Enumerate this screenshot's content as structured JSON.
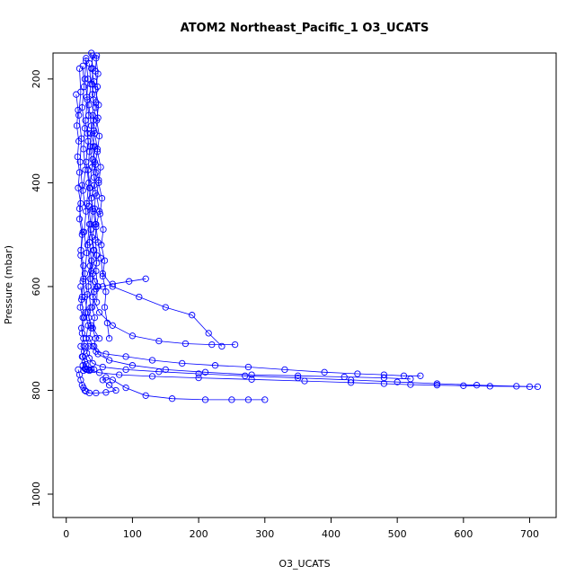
{
  "chart_data": {
    "type": "line",
    "title": "ATOM2 Northeast_Pacific_1 O3_UCATS",
    "xlabel": "O3_UCATS",
    "ylabel": "Pressure (mbar)",
    "xlim": [
      -20,
      740
    ],
    "ylim": [
      1045,
      150
    ],
    "y_reversed": true,
    "x_ticks": [
      0,
      100,
      200,
      300,
      400,
      500,
      600,
      700
    ],
    "y_ticks": [
      200,
      400,
      600,
      800,
      1000
    ],
    "grid": false,
    "legend": "none",
    "colors": {
      "series": "#0000ff",
      "axes": "#000000"
    },
    "marker": "open-circle",
    "series": [
      {
        "x": [
          40,
          38,
          42,
          39,
          44,
          41,
          37,
          43,
          40,
          45,
          42,
          38,
          41,
          44,
          39,
          42,
          46,
          40,
          43,
          48,
          45,
          55,
          70,
          95,
          120
        ],
        "y": [
          155,
          180,
          205,
          230,
          255,
          280,
          305,
          330,
          355,
          380,
          405,
          430,
          455,
          480,
          505,
          530,
          555,
          575,
          590,
          600,
          605,
          600,
          595,
          590,
          585
        ]
      },
      {
        "x": [
          46,
          44,
          47,
          45,
          48,
          43,
          47,
          44,
          49,
          46,
          50,
          45,
          48,
          52,
          55,
          70,
          110,
          150,
          190,
          215,
          235
        ],
        "y": [
          155,
          185,
          215,
          245,
          275,
          305,
          335,
          365,
          395,
          425,
          455,
          485,
          515,
          545,
          575,
          600,
          620,
          640,
          655,
          690,
          715
        ]
      },
      {
        "x": [
          30,
          28,
          32,
          29,
          33,
          30,
          34,
          31,
          35,
          32,
          36,
          33,
          37,
          34,
          38,
          35,
          40,
          45,
          60,
          90,
          130,
          175,
          225,
          275,
          330,
          390,
          440,
          480,
          510,
          535
        ],
        "y": [
          160,
          200,
          240,
          280,
          320,
          360,
          400,
          440,
          480,
          520,
          560,
          600,
          640,
          660,
          680,
          700,
          715,
          725,
          730,
          735,
          742,
          748,
          752,
          755,
          760,
          765,
          768,
          770,
          772,
          772
        ]
      },
      {
        "x": [
          35,
          37,
          34,
          38,
          36,
          39,
          35,
          40,
          37,
          41,
          38,
          42,
          39,
          43,
          40,
          44,
          42,
          48,
          65,
          100,
          150,
          210,
          280,
          350,
          420,
          480,
          520
        ],
        "y": [
          170,
          210,
          250,
          290,
          330,
          370,
          410,
          450,
          490,
          530,
          570,
          610,
          640,
          660,
          680,
          700,
          715,
          730,
          742,
          752,
          760,
          765,
          770,
          772,
          774,
          776,
          778
        ]
      },
      {
        "x": [
          25,
          27,
          24,
          28,
          26,
          29,
          25,
          30,
          27,
          31,
          28,
          32,
          29,
          33,
          30,
          34,
          31,
          35,
          40,
          55,
          90,
          140,
          200,
          270,
          350,
          430,
          500,
          560,
          620,
          680,
          712
        ],
        "y": [
          175,
          215,
          255,
          295,
          335,
          375,
          415,
          455,
          495,
          535,
          575,
          615,
          650,
          675,
          700,
          715,
          728,
          738,
          748,
          755,
          760,
          764,
          768,
          772,
          776,
          780,
          784,
          787,
          790,
          792,
          793
        ]
      },
      {
        "x": [
          20,
          22,
          19,
          23,
          21,
          24,
          20,
          25,
          22,
          26,
          23,
          27,
          24,
          28,
          25,
          30,
          35,
          50,
          80,
          130,
          200,
          280,
          360,
          430,
          480,
          520,
          560,
          600,
          640,
          700
        ],
        "y": [
          180,
          225,
          270,
          315,
          360,
          405,
          450,
          495,
          540,
          585,
          625,
          660,
          690,
          715,
          735,
          750,
          760,
          766,
          770,
          773,
          776,
          779,
          782,
          785,
          787,
          789,
          790,
          791,
          792,
          793
        ]
      },
      {
        "x": [
          18,
          20,
          22,
          24,
          26,
          28,
          30,
          35,
          45,
          60,
          75,
          65,
          55,
          60,
          70,
          90,
          120,
          160,
          210,
          250,
          275,
          300
        ],
        "y": [
          760,
          770,
          780,
          790,
          795,
          800,
          802,
          805,
          805,
          804,
          800,
          790,
          780,
          775,
          780,
          795,
          810,
          816,
          818,
          818,
          818,
          818
        ]
      },
      {
        "x": [
          30,
          33,
          31,
          34,
          32,
          35,
          33,
          36,
          34,
          37,
          35,
          38,
          36,
          40,
          50,
          70,
          100,
          140,
          180,
          220,
          255
        ],
        "y": [
          165,
          200,
          235,
          270,
          305,
          340,
          375,
          410,
          445,
          480,
          515,
          550,
          585,
          620,
          650,
          675,
          695,
          705,
          710,
          712,
          712
        ]
      },
      {
        "x": [
          15,
          18,
          16,
          19,
          17,
          20,
          18,
          22,
          20,
          24,
          22,
          26,
          25,
          28,
          32,
          38,
          50
        ],
        "y": [
          230,
          260,
          290,
          320,
          350,
          380,
          410,
          440,
          470,
          500,
          530,
          560,
          590,
          620,
          650,
          675,
          700
        ]
      },
      {
        "x": [
          22,
          24,
          21,
          25,
          23,
          26,
          22,
          27,
          24,
          28,
          25,
          29,
          26,
          30,
          28,
          32,
          35,
          38,
          42
        ],
        "y": [
          600,
          620,
          640,
          660,
          680,
          700,
          715,
          725,
          735,
          745,
          752,
          758,
          762,
          760,
          758,
          760,
          762,
          760,
          760
        ]
      },
      {
        "x": [
          45,
          48,
          44,
          49,
          46,
          50,
          47,
          52,
          49,
          54,
          51,
          56,
          53,
          58,
          55,
          60,
          58,
          62,
          65
        ],
        "y": [
          160,
          190,
          220,
          250,
          280,
          310,
          340,
          370,
          400,
          430,
          460,
          490,
          520,
          550,
          580,
          610,
          640,
          670,
          700
        ]
      },
      {
        "x": [
          38,
          40,
          39,
          41,
          40,
          42,
          41,
          43,
          42,
          44,
          43,
          45,
          44,
          46,
          45,
          47,
          46
        ],
        "y": [
          150,
          180,
          210,
          240,
          270,
          300,
          330,
          360,
          390,
          420,
          450,
          480,
          510,
          540,
          570,
          600,
          630
        ]
      }
    ]
  }
}
